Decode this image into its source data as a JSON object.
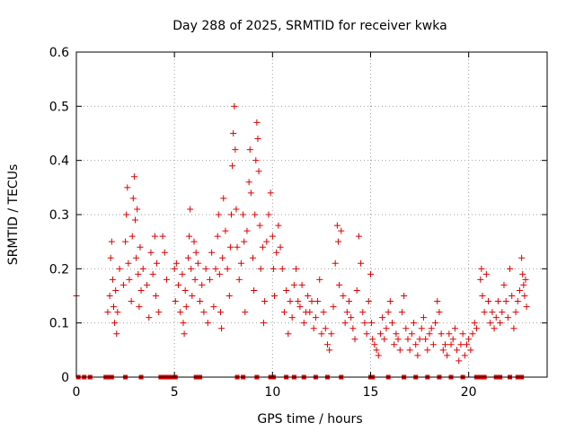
{
  "chart_data": {
    "type": "scatter",
    "title": "Day 288 of 2025, SRMTID for receiver kwka",
    "xlabel": "GPS time / hours",
    "ylabel": "SRMTID / TECUs",
    "xlim": [
      0,
      24
    ],
    "ylim": [
      0,
      0.6
    ],
    "x_ticks": [
      0,
      5,
      10,
      15,
      20
    ],
    "x_tick_labels": [
      "0",
      "5",
      "10",
      "15",
      "20"
    ],
    "y_ticks": [
      0,
      0.1,
      0.2,
      0.3,
      0.4,
      0.5,
      0.6
    ],
    "y_tick_labels": [
      "0",
      "0.1",
      "0.2",
      "0.3",
      "0.4",
      "0.5",
      "0.6"
    ],
    "grid": true,
    "marker": "+",
    "color": "#e00000",
    "series": [
      {
        "name": "SRMTID",
        "points": [
          [
            0.0,
            0.15
          ],
          [
            1.6,
            0.12
          ],
          [
            1.7,
            0.15
          ],
          [
            1.75,
            0.22
          ],
          [
            1.8,
            0.25
          ],
          [
            1.85,
            0.18
          ],
          [
            1.9,
            0.13
          ],
          [
            1.95,
            0.1
          ],
          [
            2.0,
            0.16
          ],
          [
            2.05,
            0.08
          ],
          [
            2.1,
            0.12
          ],
          [
            2.2,
            0.2
          ],
          [
            2.4,
            0.17
          ],
          [
            2.5,
            0.25
          ],
          [
            2.55,
            0.3
          ],
          [
            2.6,
            0.35
          ],
          [
            2.65,
            0.21
          ],
          [
            2.7,
            0.18
          ],
          [
            2.8,
            0.14
          ],
          [
            2.85,
            0.26
          ],
          [
            2.9,
            0.33
          ],
          [
            2.95,
            0.37
          ],
          [
            3.0,
            0.29
          ],
          [
            3.05,
            0.22
          ],
          [
            3.1,
            0.31
          ],
          [
            3.15,
            0.19
          ],
          [
            3.2,
            0.13
          ],
          [
            3.25,
            0.24
          ],
          [
            3.3,
            0.16
          ],
          [
            3.4,
            0.2
          ],
          [
            3.6,
            0.17
          ],
          [
            3.7,
            0.11
          ],
          [
            3.8,
            0.23
          ],
          [
            3.9,
            0.19
          ],
          [
            4.0,
            0.26
          ],
          [
            4.05,
            0.15
          ],
          [
            4.1,
            0.21
          ],
          [
            4.2,
            0.12
          ],
          [
            4.4,
            0.26
          ],
          [
            4.5,
            0.23
          ],
          [
            4.6,
            0.18
          ],
          [
            5.0,
            0.2
          ],
          [
            5.05,
            0.14
          ],
          [
            5.1,
            0.21
          ],
          [
            5.2,
            0.17
          ],
          [
            5.3,
            0.12
          ],
          [
            5.4,
            0.19
          ],
          [
            5.45,
            0.1
          ],
          [
            5.5,
            0.08
          ],
          [
            5.55,
            0.16
          ],
          [
            5.6,
            0.13
          ],
          [
            5.7,
            0.22
          ],
          [
            5.75,
            0.26
          ],
          [
            5.8,
            0.31
          ],
          [
            5.85,
            0.2
          ],
          [
            5.9,
            0.15
          ],
          [
            6.0,
            0.25
          ],
          [
            6.05,
            0.18
          ],
          [
            6.1,
            0.23
          ],
          [
            6.2,
            0.21
          ],
          [
            6.3,
            0.14
          ],
          [
            6.4,
            0.17
          ],
          [
            6.5,
            0.12
          ],
          [
            6.6,
            0.2
          ],
          [
            6.7,
            0.1
          ],
          [
            6.8,
            0.18
          ],
          [
            6.9,
            0.23
          ],
          [
            7.0,
            0.13
          ],
          [
            7.1,
            0.2
          ],
          [
            7.2,
            0.26
          ],
          [
            7.25,
            0.3
          ],
          [
            7.3,
            0.19
          ],
          [
            7.35,
            0.12
          ],
          [
            7.4,
            0.09
          ],
          [
            7.45,
            0.22
          ],
          [
            7.5,
            0.33
          ],
          [
            7.6,
            0.27
          ],
          [
            7.7,
            0.2
          ],
          [
            7.8,
            0.15
          ],
          [
            7.85,
            0.24
          ],
          [
            7.9,
            0.3
          ],
          [
            7.95,
            0.39
          ],
          [
            8.0,
            0.45
          ],
          [
            8.05,
            0.5
          ],
          [
            8.1,
            0.42
          ],
          [
            8.15,
            0.31
          ],
          [
            8.2,
            0.24
          ],
          [
            8.3,
            0.18
          ],
          [
            8.4,
            0.21
          ],
          [
            8.5,
            0.3
          ],
          [
            8.55,
            0.25
          ],
          [
            8.6,
            0.12
          ],
          [
            8.7,
            0.27
          ],
          [
            8.8,
            0.36
          ],
          [
            8.85,
            0.42
          ],
          [
            8.9,
            0.34
          ],
          [
            9.0,
            0.22
          ],
          [
            9.05,
            0.16
          ],
          [
            9.1,
            0.3
          ],
          [
            9.15,
            0.4
          ],
          [
            9.2,
            0.47
          ],
          [
            9.25,
            0.44
          ],
          [
            9.3,
            0.38
          ],
          [
            9.35,
            0.28
          ],
          [
            9.4,
            0.2
          ],
          [
            9.5,
            0.24
          ],
          [
            9.55,
            0.1
          ],
          [
            9.6,
            0.14
          ],
          [
            9.7,
            0.25
          ],
          [
            9.8,
            0.3
          ],
          [
            9.9,
            0.34
          ],
          [
            10.0,
            0.26
          ],
          [
            10.05,
            0.2
          ],
          [
            10.1,
            0.15
          ],
          [
            10.2,
            0.23
          ],
          [
            10.3,
            0.28
          ],
          [
            10.4,
            0.24
          ],
          [
            10.5,
            0.2
          ],
          [
            10.6,
            0.12
          ],
          [
            10.7,
            0.16
          ],
          [
            10.8,
            0.08
          ],
          [
            10.9,
            0.14
          ],
          [
            11.0,
            0.11
          ],
          [
            11.1,
            0.17
          ],
          [
            11.2,
            0.2
          ],
          [
            11.3,
            0.14
          ],
          [
            11.4,
            0.13
          ],
          [
            11.5,
            0.17
          ],
          [
            11.6,
            0.1
          ],
          [
            11.7,
            0.12
          ],
          [
            11.8,
            0.15
          ],
          [
            11.9,
            0.12
          ],
          [
            12.0,
            0.14
          ],
          [
            12.1,
            0.09
          ],
          [
            12.2,
            0.11
          ],
          [
            12.3,
            0.14
          ],
          [
            12.4,
            0.18
          ],
          [
            12.5,
            0.08
          ],
          [
            12.6,
            0.12
          ],
          [
            12.7,
            0.09
          ],
          [
            12.8,
            0.06
          ],
          [
            12.9,
            0.05
          ],
          [
            13.0,
            0.08
          ],
          [
            13.1,
            0.13
          ],
          [
            13.2,
            0.21
          ],
          [
            13.3,
            0.28
          ],
          [
            13.35,
            0.25
          ],
          [
            13.4,
            0.17
          ],
          [
            13.5,
            0.27
          ],
          [
            13.6,
            0.15
          ],
          [
            13.7,
            0.1
          ],
          [
            13.8,
            0.12
          ],
          [
            13.9,
            0.14
          ],
          [
            14.0,
            0.11
          ],
          [
            14.1,
            0.09
          ],
          [
            14.2,
            0.07
          ],
          [
            14.3,
            0.16
          ],
          [
            14.4,
            0.26
          ],
          [
            14.5,
            0.21
          ],
          [
            14.6,
            0.12
          ],
          [
            14.7,
            0.1
          ],
          [
            14.8,
            0.08
          ],
          [
            14.9,
            0.14
          ],
          [
            15.0,
            0.19
          ],
          [
            15.05,
            0.1
          ],
          [
            15.1,
            0.07
          ],
          [
            15.2,
            0.06
          ],
          [
            15.3,
            0.05
          ],
          [
            15.4,
            0.04
          ],
          [
            15.5,
            0.08
          ],
          [
            15.6,
            0.11
          ],
          [
            15.7,
            0.07
          ],
          [
            15.8,
            0.09
          ],
          [
            15.9,
            0.12
          ],
          [
            16.0,
            0.14
          ],
          [
            16.1,
            0.1
          ],
          [
            16.2,
            0.06
          ],
          [
            16.3,
            0.08
          ],
          [
            16.4,
            0.07
          ],
          [
            16.5,
            0.05
          ],
          [
            16.6,
            0.12
          ],
          [
            16.7,
            0.15
          ],
          [
            16.8,
            0.09
          ],
          [
            16.9,
            0.07
          ],
          [
            17.0,
            0.05
          ],
          [
            17.1,
            0.08
          ],
          [
            17.2,
            0.1
          ],
          [
            17.3,
            0.06
          ],
          [
            17.4,
            0.04
          ],
          [
            17.5,
            0.07
          ],
          [
            17.6,
            0.09
          ],
          [
            17.7,
            0.11
          ],
          [
            17.8,
            0.07
          ],
          [
            17.9,
            0.05
          ],
          [
            18.0,
            0.08
          ],
          [
            18.1,
            0.09
          ],
          [
            18.2,
            0.06
          ],
          [
            18.3,
            0.1
          ],
          [
            18.4,
            0.14
          ],
          [
            18.5,
            0.12
          ],
          [
            18.6,
            0.08
          ],
          [
            18.7,
            0.05
          ],
          [
            18.8,
            0.06
          ],
          [
            18.9,
            0.04
          ],
          [
            19.0,
            0.08
          ],
          [
            19.1,
            0.06
          ],
          [
            19.2,
            0.07
          ],
          [
            19.3,
            0.09
          ],
          [
            19.4,
            0.05
          ],
          [
            19.5,
            0.03
          ],
          [
            19.6,
            0.06
          ],
          [
            19.7,
            0.08
          ],
          [
            19.8,
            0.04
          ],
          [
            19.9,
            0.06
          ],
          [
            20.0,
            0.07
          ],
          [
            20.1,
            0.05
          ],
          [
            20.2,
            0.08
          ],
          [
            20.3,
            0.1
          ],
          [
            20.4,
            0.09
          ],
          [
            20.6,
            0.18
          ],
          [
            20.65,
            0.2
          ],
          [
            20.7,
            0.15
          ],
          [
            20.8,
            0.12
          ],
          [
            20.9,
            0.19
          ],
          [
            21.0,
            0.14
          ],
          [
            21.1,
            0.1
          ],
          [
            21.2,
            0.12
          ],
          [
            21.3,
            0.09
          ],
          [
            21.4,
            0.11
          ],
          [
            21.5,
            0.14
          ],
          [
            21.6,
            0.1
          ],
          [
            21.7,
            0.12
          ],
          [
            21.8,
            0.17
          ],
          [
            21.9,
            0.14
          ],
          [
            22.0,
            0.11
          ],
          [
            22.1,
            0.2
          ],
          [
            22.2,
            0.15
          ],
          [
            22.3,
            0.09
          ],
          [
            22.4,
            0.12
          ],
          [
            22.5,
            0.14
          ],
          [
            22.6,
            0.16
          ],
          [
            22.7,
            0.22
          ],
          [
            22.75,
            0.19
          ],
          [
            22.8,
            0.17
          ],
          [
            22.85,
            0.15
          ],
          [
            22.9,
            0.18
          ],
          [
            22.95,
            0.13
          ],
          [
            0.1,
            0.0
          ],
          [
            0.4,
            0.0
          ],
          [
            0.7,
            0.0
          ],
          [
            1.5,
            0.0
          ],
          [
            1.65,
            0.0
          ],
          [
            1.8,
            0.0
          ],
          [
            2.5,
            0.0
          ],
          [
            3.3,
            0.0
          ],
          [
            4.3,
            0.0
          ],
          [
            4.5,
            0.0
          ],
          [
            4.7,
            0.0
          ],
          [
            4.9,
            0.0
          ],
          [
            5.05,
            0.0
          ],
          [
            6.1,
            0.0
          ],
          [
            6.3,
            0.0
          ],
          [
            8.2,
            0.0
          ],
          [
            8.5,
            0.0
          ],
          [
            9.2,
            0.0
          ],
          [
            9.9,
            0.0
          ],
          [
            10.05,
            0.0
          ],
          [
            10.7,
            0.0
          ],
          [
            11.1,
            0.0
          ],
          [
            11.6,
            0.0
          ],
          [
            12.2,
            0.0
          ],
          [
            12.8,
            0.0
          ],
          [
            13.5,
            0.0
          ],
          [
            15.0,
            0.0
          ],
          [
            15.1,
            0.0
          ],
          [
            15.9,
            0.0
          ],
          [
            16.7,
            0.0
          ],
          [
            17.3,
            0.0
          ],
          [
            17.9,
            0.0
          ],
          [
            18.5,
            0.0
          ],
          [
            19.1,
            0.0
          ],
          [
            19.7,
            0.0
          ],
          [
            20.4,
            0.0
          ],
          [
            20.6,
            0.0
          ],
          [
            20.8,
            0.0
          ],
          [
            21.4,
            0.0
          ],
          [
            21.6,
            0.0
          ],
          [
            22.1,
            0.0
          ],
          [
            22.5,
            0.0
          ],
          [
            22.7,
            0.0
          ]
        ]
      }
    ]
  }
}
